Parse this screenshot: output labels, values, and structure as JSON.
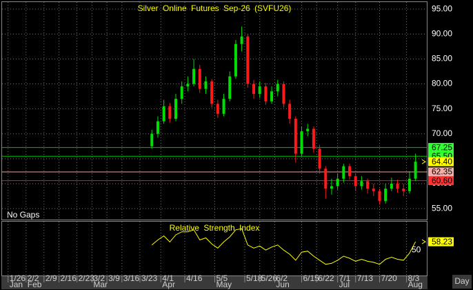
{
  "chart_data": {
    "type": "candlestick",
    "title": "Silver Online Futures Sep-26 (SVFU26)",
    "gap_mode": "No Gaps",
    "period": "Day",
    "up_color": "#00e000",
    "down_color": "#ff1a1a",
    "grid": true,
    "xlim": [
      -2,
      140
    ],
    "ylim": [
      52.8,
      96.4
    ],
    "yticks": [
      {
        "value": 55,
        "label": "55.00"
      },
      {
        "value": 60,
        "label": "60.00"
      },
      {
        "value": 65,
        "label": "65.00"
      },
      {
        "value": 70,
        "label": "70.00"
      },
      {
        "value": 75,
        "label": "75.00"
      },
      {
        "value": 80,
        "label": "80.00"
      },
      {
        "value": 85,
        "label": "85.00"
      },
      {
        "value": 90,
        "label": "90.00"
      },
      {
        "value": 95,
        "label": "95.00"
      }
    ],
    "xticks": [
      {
        "value": 0,
        "label": "1/26"
      },
      {
        "value": 6,
        "label": "2/2"
      },
      {
        "value": 12,
        "label": "2/9"
      },
      {
        "value": 17,
        "label": "2/16"
      },
      {
        "value": 23,
        "label": "2/23"
      },
      {
        "value": 28,
        "label": "3/2"
      },
      {
        "value": 33,
        "label": "3/9"
      },
      {
        "value": 38,
        "label": "3/16"
      },
      {
        "value": 44,
        "label": "3/23"
      },
      {
        "value": 51,
        "label": "4/1"
      },
      {
        "value": 59,
        "label": "4/16"
      },
      {
        "value": 69,
        "label": "5/5"
      },
      {
        "value": 79,
        "label": "5/18"
      },
      {
        "value": 84,
        "label": "5/26"
      },
      {
        "value": 89,
        "label": "6/2"
      },
      {
        "value": 98,
        "label": "6/15"
      },
      {
        "value": 103,
        "label": "6/22"
      },
      {
        "value": 110,
        "label": "7/1"
      },
      {
        "value": 116,
        "label": "7/13"
      },
      {
        "value": 124,
        "label": "7/20"
      },
      {
        "value": 133,
        "label": "8/3"
      }
    ],
    "month_ticks": [
      {
        "value": 0,
        "label": "Jan"
      },
      {
        "value": 6,
        "label": "Feb"
      },
      {
        "value": 28,
        "label": "Mar"
      },
      {
        "value": 51,
        "label": "Apr"
      },
      {
        "value": 69,
        "label": "May"
      },
      {
        "value": 89,
        "label": "Jun"
      },
      {
        "value": 110,
        "label": "Jul"
      },
      {
        "value": 133,
        "label": "Aug"
      }
    ],
    "x": [
      48,
      50,
      52,
      54,
      56,
      58,
      60,
      62,
      64,
      66,
      68,
      70,
      72,
      74,
      76,
      78,
      80,
      82,
      84,
      86,
      88,
      90,
      92,
      94,
      96,
      98,
      100,
      102,
      104,
      106,
      108,
      110,
      112,
      114,
      116,
      118,
      120,
      122,
      124,
      126,
      128,
      130,
      132,
      134,
      136
    ],
    "open": [
      67.5,
      70.0,
      72.5,
      75.5,
      73.0,
      77.0,
      79.5,
      80.0,
      83.0,
      79.0,
      80.5,
      76.0,
      74.0,
      77.0,
      81.5,
      88.0,
      89.5,
      80.0,
      78.0,
      79.5,
      76.5,
      78.5,
      80.0,
      76.0,
      73.0,
      66.0,
      70.5,
      71.0,
      67.0,
      63.0,
      59.0,
      59.5,
      61.0,
      63.5,
      61.5,
      59.5,
      60.5,
      59.0,
      58.5,
      56.5,
      59.0,
      60.0,
      59.0,
      58.5,
      61.0
    ],
    "high": [
      70.8,
      73.5,
      76.8,
      76.2,
      78.0,
      80.5,
      81.5,
      85.0,
      83.8,
      81.5,
      81.0,
      76.8,
      78.0,
      82.5,
      88.8,
      91.5,
      90.0,
      80.8,
      80.5,
      80.2,
      79.5,
      80.8,
      80.5,
      76.8,
      73.5,
      71.5,
      72.0,
      71.5,
      67.8,
      63.5,
      61.0,
      62.0,
      64.0,
      64.0,
      62.0,
      61.5,
      61.0,
      60.0,
      59.0,
      60.0,
      61.2,
      60.8,
      60.0,
      62.5,
      66.0
    ],
    "low": [
      67.0,
      69.2,
      72.0,
      72.2,
      72.5,
      76.0,
      78.5,
      79.5,
      78.2,
      78.0,
      75.2,
      73.2,
      73.5,
      76.5,
      81.0,
      86.5,
      79.2,
      77.0,
      77.2,
      75.8,
      76.0,
      77.5,
      75.2,
      72.0,
      64.2,
      65.5,
      69.5,
      66.2,
      62.0,
      57.0,
      57.8,
      58.8,
      60.2,
      60.8,
      58.5,
      58.8,
      58.0,
      57.5,
      55.8,
      56.0,
      58.5,
      58.2,
      57.5,
      58.0,
      60.5
    ],
    "close": [
      70.0,
      72.5,
      75.5,
      73.0,
      77.0,
      79.5,
      80.0,
      83.0,
      79.0,
      80.5,
      76.0,
      74.0,
      77.0,
      81.5,
      88.0,
      89.5,
      80.0,
      78.0,
      79.5,
      76.5,
      78.5,
      80.0,
      76.0,
      73.0,
      66.0,
      70.5,
      71.0,
      67.0,
      63.0,
      59.0,
      59.5,
      61.0,
      63.5,
      61.5,
      59.5,
      60.5,
      59.0,
      58.5,
      56.5,
      59.0,
      60.0,
      59.0,
      58.5,
      61.0,
      64.4
    ],
    "levels": [
      {
        "value": 67.25,
        "label": "67.25",
        "color": "#00c000",
        "label_bg": "#33ff33",
        "line": true
      },
      {
        "value": 65.5,
        "label": "65.50",
        "color": "#00c000",
        "label_bg": "#33ff33",
        "line": true
      },
      {
        "value": 64.4,
        "label": "64.40",
        "color": "#ffff00",
        "label_bg": "#ffff00",
        "line": false
      },
      {
        "value": 62.35,
        "label": "62.35",
        "color": "#f4a6a0",
        "label_bg": "#f4b0a8",
        "line": true
      },
      {
        "value": 60.6,
        "label": "60.60",
        "color": "#e02020",
        "label_bg": "#ff3030",
        "line": true
      }
    ],
    "indicator": {
      "title": "Relative Strength Index",
      "color": "#ffff00",
      "ylim": [
        25,
        78
      ],
      "yticks": [
        50
      ],
      "values": [
        55,
        60,
        64,
        58,
        65,
        68,
        68,
        70,
        60,
        62,
        56,
        52,
        58,
        63,
        70,
        71,
        55,
        52,
        54,
        50,
        53,
        55,
        50,
        46,
        40,
        48,
        49,
        44,
        40,
        36,
        37,
        40,
        44,
        42,
        39,
        41,
        39,
        38,
        36,
        41,
        43,
        41,
        40,
        47,
        58.23
      ],
      "last_value": 58.23,
      "label_bg": "#ffff00"
    }
  }
}
